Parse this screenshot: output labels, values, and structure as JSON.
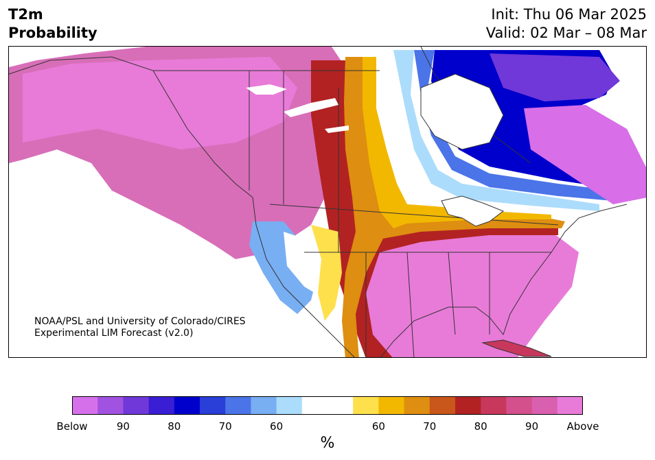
{
  "header": {
    "variable": "T2m",
    "product": "Probability",
    "init": "Init: Thu 06 Mar 2025",
    "valid": "Valid: 02 Mar – 08 Mar"
  },
  "map": {
    "region": "North America",
    "colors": {
      "above_high": "#e87bd8",
      "above_mid": "#d14f8a",
      "above_80": "#b22222",
      "above_70": "#cc5500",
      "above_60": "#f2b800",
      "neutral": "#ffffff",
      "below_60": "#a8dafc",
      "below_70": "#4b74e8",
      "below_80": "#0000cc",
      "below_high": "#d86ee8",
      "land_outline": "#333333"
    }
  },
  "credit": {
    "line1": "NOAA/PSL and University of Colorado/CIRES",
    "line2": "Experimental LIM Forecast (v2.0)"
  },
  "colorbar": {
    "colors": [
      "#d670ea",
      "#a252e0",
      "#7038d8",
      "#3a1ed4",
      "#0000cc",
      "#2a3ed8",
      "#4b74e8",
      "#78aef2",
      "#acdcfc",
      "#ffffff",
      "#ffffff",
      "#fde04c",
      "#f2b800",
      "#de8e10",
      "#c9561a",
      "#b22222",
      "#c8385c",
      "#d4508c",
      "#d95faf",
      "#e87bd8"
    ],
    "tick_labels": [
      "Below",
      "90",
      "80",
      "70",
      "60",
      "60",
      "70",
      "80",
      "90",
      "Above"
    ],
    "unit": "%"
  }
}
